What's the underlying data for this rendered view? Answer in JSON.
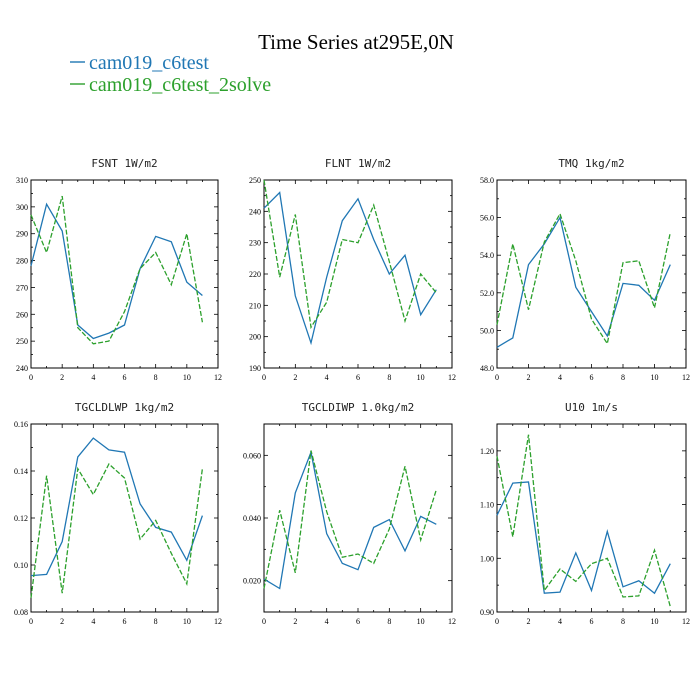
{
  "figure": {
    "title": "Time Series at295E,0N",
    "legend": [
      {
        "label": "cam019_c6test",
        "color": "#2077b4",
        "dash": ""
      },
      {
        "label": "cam019_c6test_2solve",
        "color": "#2ca02c",
        "dash": "5,2"
      }
    ]
  },
  "chart_data": [
    {
      "type": "line",
      "title": "FSNT  1W/m2",
      "xlim": [
        0,
        12
      ],
      "xticks": [
        0,
        2,
        4,
        6,
        8,
        10,
        12
      ],
      "ylim": [
        240,
        310
      ],
      "yticks": [
        "240",
        "250",
        "260",
        "270",
        "280",
        "290",
        "300",
        "310"
      ],
      "x": [
        0,
        1,
        2,
        3,
        4,
        5,
        6,
        7,
        8,
        9,
        10,
        11
      ],
      "series": [
        {
          "name": "cam019_c6test",
          "values": [
            278,
            301,
            291,
            256,
            251,
            253,
            256,
            277,
            289,
            287,
            272,
            267
          ]
        },
        {
          "name": "cam019_c6test_2solve",
          "values": [
            297,
            283,
            304,
            255,
            249,
            250,
            261,
            277,
            283,
            271,
            290,
            257
          ]
        }
      ]
    },
    {
      "type": "line",
      "title": "FLNT  1W/m2",
      "xlim": [
        0,
        12
      ],
      "xticks": [
        0,
        2,
        4,
        6,
        8,
        10,
        12
      ],
      "ylim": [
        190,
        250
      ],
      "yticks": [
        "190",
        "200",
        "210",
        "220",
        "230",
        "240",
        "250"
      ],
      "x": [
        0,
        1,
        2,
        3,
        4,
        5,
        6,
        7,
        8,
        9,
        10,
        11
      ],
      "series": [
        {
          "name": "cam019_c6test",
          "values": [
            241,
            246,
            213,
            198,
            219,
            237,
            244,
            231,
            220,
            226,
            207,
            215
          ]
        },
        {
          "name": "cam019_c6test_2solve",
          "values": [
            250,
            219,
            239,
            203,
            211,
            231,
            230,
            242,
            224,
            205,
            220,
            214
          ]
        }
      ]
    },
    {
      "type": "line",
      "title": "TMQ  1kg/m2",
      "xlim": [
        0,
        12
      ],
      "xticks": [
        0,
        2,
        4,
        6,
        8,
        10,
        12
      ],
      "ylim": [
        48,
        58
      ],
      "yticks": [
        "48.0",
        "50.0",
        "52.0",
        "54.0",
        "56.0",
        "58.0"
      ],
      "x": [
        0,
        1,
        2,
        3,
        4,
        5,
        6,
        7,
        8,
        9,
        10,
        11
      ],
      "series": [
        {
          "name": "cam019_c6test",
          "values": [
            49.1,
            49.6,
            53.5,
            54.6,
            56.0,
            52.3,
            51.0,
            49.7,
            52.5,
            52.4,
            51.6,
            53.5
          ]
        },
        {
          "name": "cam019_c6test_2solve",
          "values": [
            50.3,
            54.6,
            51.1,
            54.7,
            56.2,
            53.7,
            50.6,
            49.3,
            53.6,
            53.7,
            51.2,
            55.2
          ]
        }
      ]
    },
    {
      "type": "line",
      "title": "TGCLDLWP  1kg/m2",
      "xlim": [
        0,
        12
      ],
      "xticks": [
        0,
        2,
        4,
        6,
        8,
        10,
        12
      ],
      "ylim": [
        0.08,
        0.16
      ],
      "yticks": [
        "0.08",
        "0.10",
        "0.12",
        "0.14",
        "0.16"
      ],
      "x": [
        0,
        1,
        2,
        3,
        4,
        5,
        6,
        7,
        8,
        9,
        10,
        11
      ],
      "series": [
        {
          "name": "cam019_c6test",
          "values": [
            0.0955,
            0.096,
            0.11,
            0.146,
            0.154,
            0.149,
            0.148,
            0.126,
            0.116,
            0.114,
            0.102,
            0.121
          ]
        },
        {
          "name": "cam019_c6test_2solve",
          "values": [
            0.086,
            0.138,
            0.088,
            0.141,
            0.13,
            0.143,
            0.137,
            0.111,
            0.119,
            0.105,
            0.092,
            0.141
          ]
        }
      ]
    },
    {
      "type": "line",
      "title": "TGCLDIWP  1.0kg/m2",
      "xlim": [
        0,
        12
      ],
      "xticks": [
        0,
        2,
        4,
        6,
        8,
        10,
        12
      ],
      "ylim": [
        0.01,
        0.07
      ],
      "yticks": [
        "0.020",
        "0.040",
        "0.060"
      ],
      "ytick_values": [
        0.02,
        0.04,
        0.06
      ],
      "x": [
        0,
        1,
        2,
        3,
        4,
        5,
        6,
        7,
        8,
        9,
        10,
        11
      ],
      "series": [
        {
          "name": "cam019_c6test",
          "values": [
            0.0205,
            0.0175,
            0.048,
            0.061,
            0.035,
            0.0255,
            0.0235,
            0.037,
            0.0395,
            0.0295,
            0.0405,
            0.038
          ]
        },
        {
          "name": "cam019_c6test_2solve",
          "values": [
            0.0175,
            0.0425,
            0.0225,
            0.0615,
            0.042,
            0.0275,
            0.0285,
            0.0255,
            0.0365,
            0.0565,
            0.033,
            0.049
          ]
        }
      ]
    },
    {
      "type": "line",
      "title": "U10  1m/s",
      "xlim": [
        0,
        12
      ],
      "xticks": [
        0,
        2,
        4,
        6,
        8,
        10,
        12
      ],
      "ylim": [
        0.9,
        1.25
      ],
      "yticks": [
        "0.90",
        "1.00",
        "1.10",
        "1.20"
      ],
      "ytick_values": [
        0.9,
        1.0,
        1.1,
        1.2
      ],
      "x": [
        0,
        1,
        2,
        3,
        4,
        5,
        6,
        7,
        8,
        9,
        10,
        11
      ],
      "series": [
        {
          "name": "cam019_c6test",
          "values": [
            1.08,
            1.14,
            1.142,
            0.935,
            0.937,
            1.01,
            0.94,
            1.05,
            0.947,
            0.958,
            0.935,
            0.99
          ]
        },
        {
          "name": "cam019_c6test_2solve",
          "values": [
            1.19,
            1.04,
            1.23,
            0.94,
            0.98,
            0.957,
            0.99,
            1.0,
            0.928,
            0.93,
            1.015,
            0.91
          ]
        }
      ]
    }
  ]
}
